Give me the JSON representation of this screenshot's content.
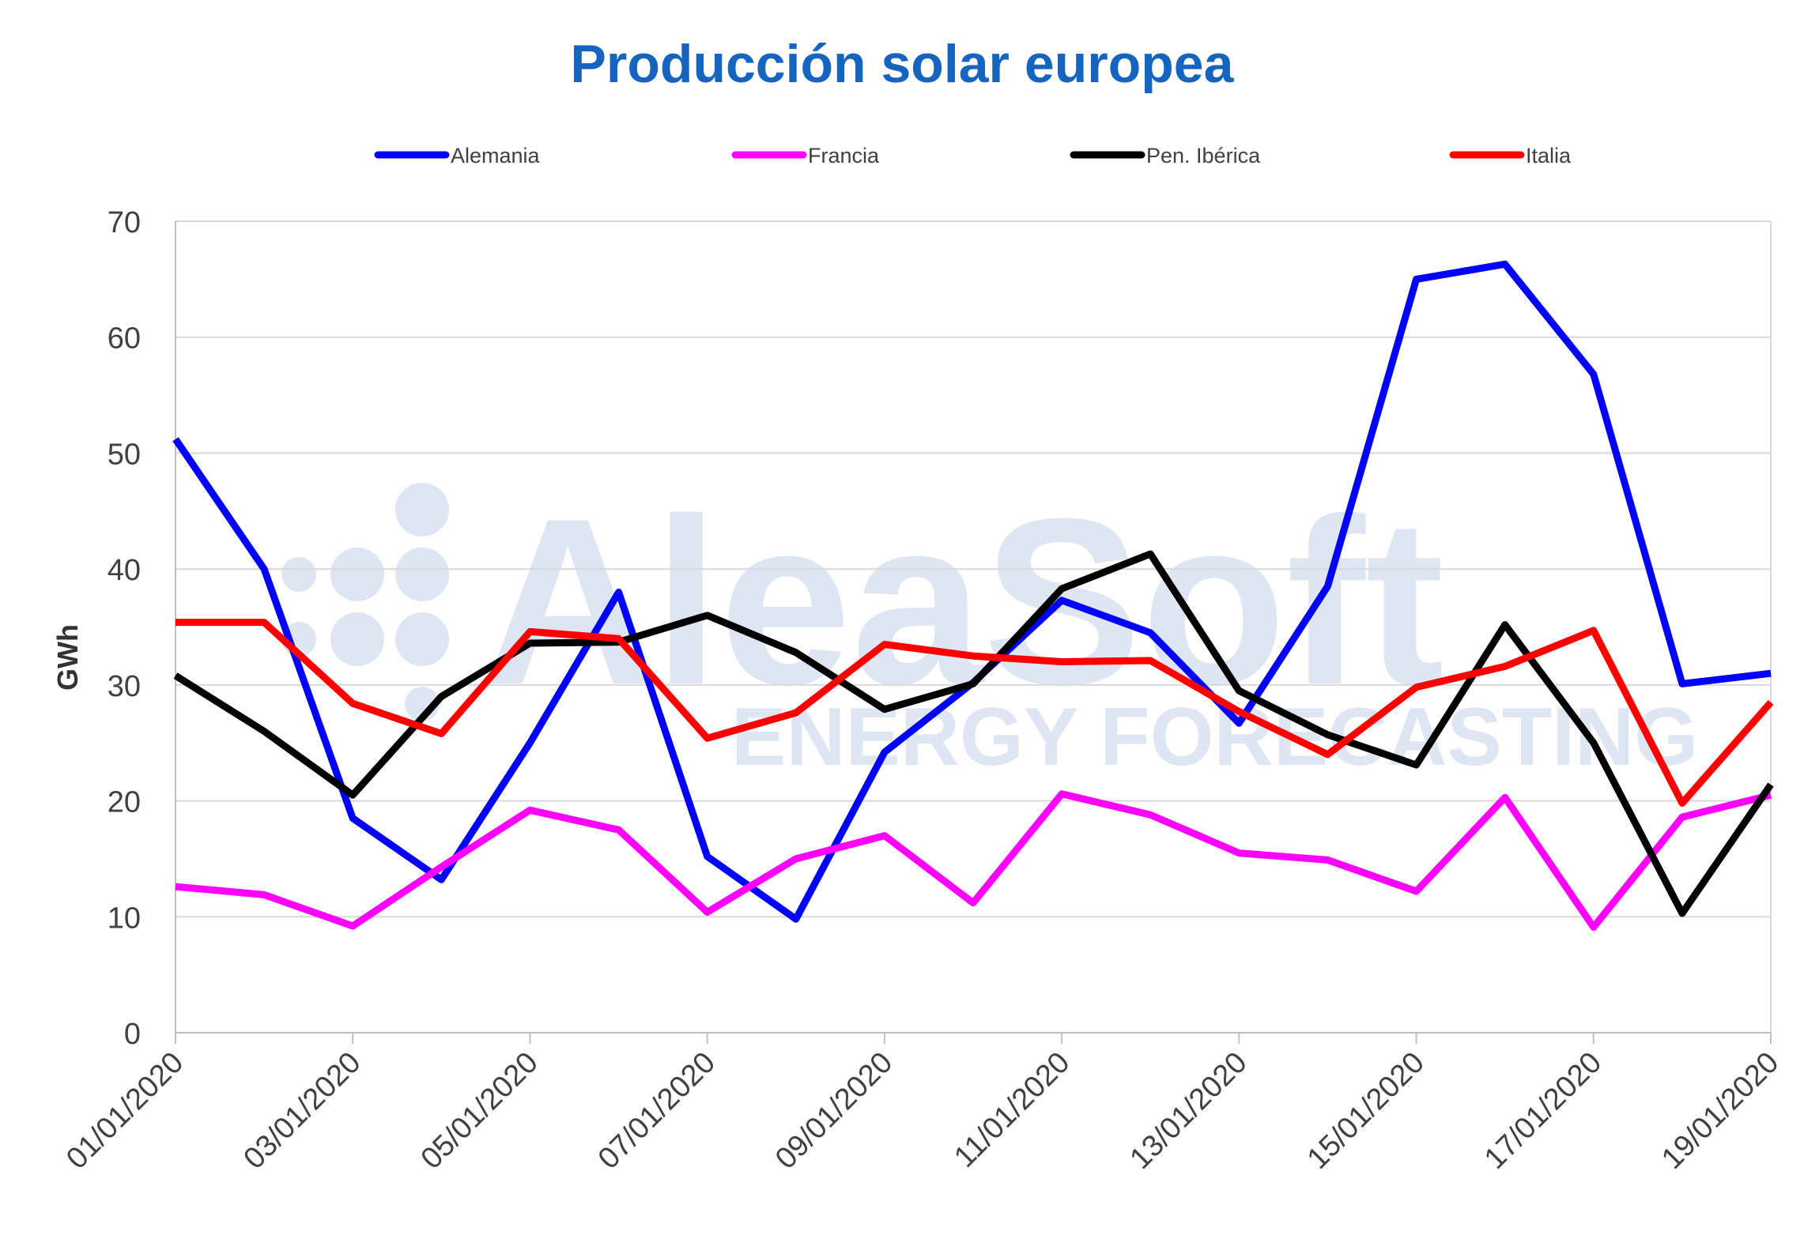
{
  "chart_data": {
    "type": "line",
    "title": "Producción solar europea",
    "ylabel": "GWh",
    "xlabel": "",
    "ylim": [
      0,
      70
    ],
    "y_ticks": [
      0,
      10,
      20,
      30,
      40,
      50,
      60,
      70
    ],
    "grid": true,
    "legend_position": "top",
    "x": [
      "01/01/2020",
      "02/01/2020",
      "03/01/2020",
      "04/01/2020",
      "05/01/2020",
      "06/01/2020",
      "07/01/2020",
      "08/01/2020",
      "09/01/2020",
      "10/01/2020",
      "11/01/2020",
      "12/01/2020",
      "13/01/2020",
      "14/01/2020",
      "15/01/2020",
      "16/01/2020",
      "17/01/2020",
      "18/01/2020",
      "19/01/2020"
    ],
    "x_tick_labels": [
      "01/01/2020",
      "03/01/2020",
      "05/01/2020",
      "07/01/2020",
      "09/01/2020",
      "11/01/2020",
      "13/01/2020",
      "15/01/2020",
      "17/01/2020",
      "19/01/2020"
    ],
    "series": [
      {
        "name": "Alemania",
        "color": "#0000ff",
        "values": [
          51.2,
          40.0,
          18.5,
          13.2,
          25.0,
          38.0,
          15.2,
          9.8,
          24.2,
          30.2,
          37.3,
          34.5,
          26.7,
          38.5,
          65.0,
          66.3,
          56.8,
          30.1,
          31.0
        ]
      },
      {
        "name": "Francia",
        "color": "#ff00ff",
        "values": [
          12.6,
          11.9,
          9.2,
          14.3,
          19.2,
          17.5,
          10.4,
          15.0,
          17.0,
          11.2,
          20.6,
          18.8,
          15.5,
          14.9,
          12.2,
          20.3,
          9.1,
          18.6,
          20.5
        ]
      },
      {
        "name": "Pen. Ibérica",
        "color": "#000000",
        "values": [
          30.8,
          26.0,
          20.5,
          29.0,
          33.6,
          33.7,
          36.0,
          32.8,
          27.9,
          30.1,
          38.3,
          41.3,
          29.5,
          25.7,
          23.1,
          35.2,
          25.0,
          10.3,
          21.4
        ]
      },
      {
        "name": "Italia",
        "color": "#ff0000",
        "values": [
          35.4,
          35.4,
          28.4,
          25.8,
          34.6,
          34.0,
          25.4,
          27.6,
          33.5,
          32.5,
          32.0,
          32.1,
          27.7,
          24.0,
          29.8,
          31.6,
          34.7,
          19.8,
          28.5
        ]
      }
    ]
  },
  "watermark": {
    "brand": "AleaSoft",
    "tagline": "ENERGY FORECASTING"
  }
}
